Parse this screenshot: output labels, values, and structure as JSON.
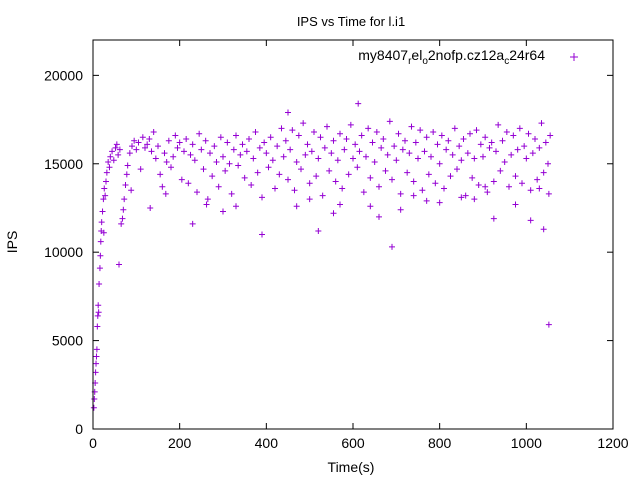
{
  "chart_data": {
    "type": "scatter",
    "title": "IPS vs Time for l.i1",
    "xlabel": "Time(s)",
    "ylabel": "IPS",
    "xlim": [
      0,
      1200
    ],
    "ylim": [
      0,
      22000
    ],
    "xticks": [
      0,
      200,
      400,
      600,
      800,
      1000,
      1200
    ],
    "yticks": [
      0,
      5000,
      10000,
      15000,
      20000
    ],
    "xtick_labels": [
      "0",
      "200",
      "400",
      "600",
      "800",
      "1000",
      "1200"
    ],
    "ytick_labels": [
      "0",
      "5000",
      "10000",
      "15000",
      "20000"
    ],
    "legend_position": "top-right",
    "series": [
      {
        "name_parts": [
          "my8407",
          "r",
          "el",
          "o",
          "2nofp.cz12a",
          "c",
          "24r64"
        ],
        "color": "#9400d3",
        "marker": "plus",
        "points": [
          [
            2,
            1200
          ],
          [
            3,
            1700
          ],
          [
            4,
            2100
          ],
          [
            5,
            2600
          ],
          [
            6,
            3200
          ],
          [
            7,
            3700
          ],
          [
            8,
            4100
          ],
          [
            9,
            4500
          ],
          [
            10,
            5800
          ],
          [
            11,
            6400
          ],
          [
            12,
            7000
          ],
          [
            13,
            6600
          ],
          [
            14,
            8200
          ],
          [
            16,
            9100
          ],
          [
            17,
            9800
          ],
          [
            18,
            10600
          ],
          [
            19,
            11200
          ],
          [
            20,
            11700
          ],
          [
            22,
            12300
          ],
          [
            24,
            13000
          ],
          [
            26,
            13600
          ],
          [
            28,
            13200
          ],
          [
            30,
            14000
          ],
          [
            32,
            14500
          ],
          [
            35,
            15100
          ],
          [
            38,
            14800
          ],
          [
            40,
            15400
          ],
          [
            44,
            15700
          ],
          [
            48,
            15200
          ],
          [
            52,
            15900
          ],
          [
            55,
            16100
          ],
          [
            58,
            15500
          ],
          [
            62,
            15800
          ],
          [
            65,
            11600
          ],
          [
            68,
            11900
          ],
          [
            70,
            12400
          ],
          [
            72,
            13000
          ],
          [
            75,
            13800
          ],
          [
            78,
            14400
          ],
          [
            80,
            14900
          ],
          [
            85,
            15600
          ],
          [
            90,
            16000
          ],
          [
            95,
            16300
          ],
          [
            100,
            15800
          ],
          [
            105,
            16200
          ],
          [
            110,
            14700
          ],
          [
            115,
            16500
          ],
          [
            120,
            15900
          ],
          [
            125,
            16100
          ],
          [
            130,
            16400
          ],
          [
            135,
            15700
          ],
          [
            140,
            16800
          ],
          [
            145,
            15300
          ],
          [
            150,
            16000
          ],
          [
            155,
            14400
          ],
          [
            160,
            13700
          ],
          [
            165,
            15600
          ],
          [
            170,
            15100
          ],
          [
            175,
            16300
          ],
          [
            180,
            14800
          ],
          [
            185,
            15400
          ],
          [
            190,
            16600
          ],
          [
            195,
            15900
          ],
          [
            200,
            16200
          ],
          [
            205,
            14100
          ],
          [
            210,
            15700
          ],
          [
            215,
            16400
          ],
          [
            220,
            13900
          ],
          [
            225,
            15500
          ],
          [
            230,
            16100
          ],
          [
            235,
            15200
          ],
          [
            240,
            13400
          ],
          [
            245,
            16700
          ],
          [
            250,
            15800
          ],
          [
            255,
            14700
          ],
          [
            260,
            16300
          ],
          [
            265,
            13000
          ],
          [
            270,
            15600
          ],
          [
            275,
            14300
          ],
          [
            280,
            16000
          ],
          [
            285,
            15100
          ],
          [
            290,
            13700
          ],
          [
            295,
            16500
          ],
          [
            300,
            15400
          ],
          [
            305,
            14600
          ],
          [
            310,
            16200
          ],
          [
            315,
            15000
          ],
          [
            320,
            13300
          ],
          [
            325,
            15800
          ],
          [
            330,
            16600
          ],
          [
            335,
            14900
          ],
          [
            340,
            15500
          ],
          [
            345,
            16100
          ],
          [
            350,
            14200
          ],
          [
            355,
            15700
          ],
          [
            360,
            16400
          ],
          [
            365,
            13800
          ],
          [
            370,
            15300
          ],
          [
            375,
            16800
          ],
          [
            380,
            14500
          ],
          [
            385,
            15900
          ],
          [
            390,
            13100
          ],
          [
            395,
            16200
          ],
          [
            400,
            15600
          ],
          [
            405,
            14800
          ],
          [
            410,
            16500
          ],
          [
            415,
            15200
          ],
          [
            420,
            13600
          ],
          [
            425,
            16000
          ],
          [
            430,
            14400
          ],
          [
            435,
            17000
          ],
          [
            440,
            15400
          ],
          [
            445,
            16300
          ],
          [
            450,
            14100
          ],
          [
            455,
            15800
          ],
          [
            460,
            16900
          ],
          [
            465,
            13500
          ],
          [
            470,
            15100
          ],
          [
            475,
            16600
          ],
          [
            480,
            14700
          ],
          [
            485,
            17300
          ],
          [
            490,
            15500
          ],
          [
            495,
            16100
          ],
          [
            500,
            13900
          ],
          [
            505,
            15700
          ],
          [
            510,
            16800
          ],
          [
            515,
            14300
          ],
          [
            520,
            15300
          ],
          [
            525,
            16500
          ],
          [
            530,
            13200
          ],
          [
            535,
            15900
          ],
          [
            540,
            17100
          ],
          [
            545,
            14600
          ],
          [
            550,
            15600
          ],
          [
            555,
            16300
          ],
          [
            560,
            14000
          ],
          [
            565,
            15200
          ],
          [
            570,
            16700
          ],
          [
            575,
            13600
          ],
          [
            580,
            15800
          ],
          [
            585,
            16400
          ],
          [
            590,
            14400
          ],
          [
            595,
            17200
          ],
          [
            600,
            15300
          ],
          [
            605,
            16100
          ],
          [
            610,
            14800
          ],
          [
            615,
            15700
          ],
          [
            620,
            16600
          ],
          [
            625,
            13400
          ],
          [
            630,
            15400
          ],
          [
            635,
            17000
          ],
          [
            640,
            14200
          ],
          [
            645,
            16200
          ],
          [
            650,
            15100
          ],
          [
            655,
            16800
          ],
          [
            660,
            13700
          ],
          [
            665,
            15900
          ],
          [
            670,
            16400
          ],
          [
            675,
            14600
          ],
          [
            680,
            15500
          ],
          [
            685,
            17400
          ],
          [
            690,
            14100
          ],
          [
            695,
            16000
          ],
          [
            700,
            15200
          ],
          [
            705,
            16700
          ],
          [
            710,
            13300
          ],
          [
            715,
            15800
          ],
          [
            720,
            16300
          ],
          [
            725,
            14500
          ],
          [
            730,
            15600
          ],
          [
            735,
            17100
          ],
          [
            740,
            14000
          ],
          [
            745,
            16200
          ],
          [
            750,
            15300
          ],
          [
            755,
            16900
          ],
          [
            760,
            13500
          ],
          [
            765,
            15700
          ],
          [
            770,
            16500
          ],
          [
            775,
            14400
          ],
          [
            780,
            15400
          ],
          [
            785,
            16800
          ],
          [
            790,
            13900
          ],
          [
            795,
            16100
          ],
          [
            800,
            15000
          ],
          [
            805,
            16600
          ],
          [
            810,
            13600
          ],
          [
            815,
            15800
          ],
          [
            820,
            16300
          ],
          [
            825,
            14300
          ],
          [
            830,
            15500
          ],
          [
            835,
            17000
          ],
          [
            840,
            14700
          ],
          [
            845,
            16000
          ],
          [
            850,
            15200
          ],
          [
            855,
            16400
          ],
          [
            860,
            13200
          ],
          [
            865,
            15600
          ],
          [
            870,
            16700
          ],
          [
            875,
            14200
          ],
          [
            880,
            15300
          ],
          [
            885,
            16900
          ],
          [
            890,
            13800
          ],
          [
            895,
            16100
          ],
          [
            900,
            15400
          ],
          [
            905,
            16500
          ],
          [
            910,
            13400
          ],
          [
            915,
            15900
          ],
          [
            920,
            16200
          ],
          [
            925,
            14000
          ],
          [
            930,
            15700
          ],
          [
            935,
            17200
          ],
          [
            940,
            14600
          ],
          [
            945,
            16300
          ],
          [
            950,
            15100
          ],
          [
            955,
            16800
          ],
          [
            960,
            13700
          ],
          [
            965,
            15500
          ],
          [
            970,
            16600
          ],
          [
            975,
            14300
          ],
          [
            980,
            15800
          ],
          [
            985,
            17000
          ],
          [
            990,
            13900
          ],
          [
            995,
            16000
          ],
          [
            1000,
            15300
          ],
          [
            1005,
            16700
          ],
          [
            1010,
            13500
          ],
          [
            1015,
            15600
          ],
          [
            1020,
            16400
          ],
          [
            1025,
            14100
          ],
          [
            1030,
            15900
          ],
          [
            1035,
            17300
          ],
          [
            1040,
            14500
          ],
          [
            1045,
            16200
          ],
          [
            1050,
            15000
          ],
          [
            1055,
            16600
          ],
          [
            25,
            11100
          ],
          [
            60,
            9300
          ],
          [
            88,
            13500
          ],
          [
            132,
            12500
          ],
          [
            168,
            13300
          ],
          [
            230,
            11600
          ],
          [
            262,
            12700
          ],
          [
            300,
            12300
          ],
          [
            330,
            12600
          ],
          [
            390,
            11000
          ],
          [
            450,
            17900
          ],
          [
            470,
            12600
          ],
          [
            500,
            13000
          ],
          [
            520,
            11200
          ],
          [
            555,
            12200
          ],
          [
            570,
            12700
          ],
          [
            612,
            18400
          ],
          [
            640,
            12600
          ],
          [
            660,
            12000
          ],
          [
            690,
            10300
          ],
          [
            710,
            12400
          ],
          [
            740,
            13200
          ],
          [
            770,
            12900
          ],
          [
            800,
            12800
          ],
          [
            850,
            13100
          ],
          [
            880,
            13000
          ],
          [
            905,
            13700
          ],
          [
            925,
            11900
          ],
          [
            975,
            12700
          ],
          [
            1010,
            11800
          ],
          [
            1030,
            13600
          ],
          [
            1040,
            11300
          ],
          [
            1052,
            13300
          ],
          [
            1052,
            5900
          ]
        ]
      }
    ]
  }
}
